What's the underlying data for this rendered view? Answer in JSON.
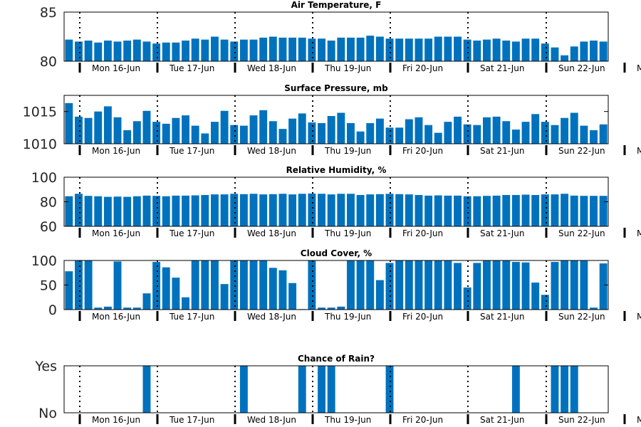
{
  "bar_color": "#0072bd",
  "day_labels": [
    "Mon 16-Jun",
    "Tue 17-Jun",
    "Wed 18-Jun",
    "Thu 19-Jun",
    "Fri 20-Jun",
    "Sat 21-Jun",
    "Sun 22-Jun",
    "M"
  ],
  "chart_data": [
    {
      "type": "bar",
      "title": "Air Temperature, F",
      "ylim": [
        80,
        85
      ],
      "yticks": [
        80,
        85
      ],
      "ytick_labels": [
        "80",
        "85"
      ],
      "grid": false,
      "values": [
        82.2,
        82.0,
        82.1,
        81.9,
        82.1,
        82.0,
        82.1,
        82.2,
        82.0,
        81.8,
        81.9,
        81.9,
        82.1,
        82.3,
        82.2,
        82.5,
        82.2,
        82.0,
        82.2,
        82.2,
        82.4,
        82.5,
        82.4,
        82.4,
        82.4,
        82.3,
        82.3,
        82.1,
        82.4,
        82.4,
        82.4,
        82.6,
        82.5,
        82.3,
        82.3,
        82.3,
        82.3,
        82.3,
        82.5,
        82.5,
        82.5,
        82.2,
        82.1,
        82.2,
        82.3,
        82.1,
        82.0,
        82.3,
        82.3,
        81.8,
        81.4,
        80.6,
        81.5,
        82.0,
        82.1,
        82.0
      ]
    },
    {
      "type": "bar",
      "title": "Surface Pressure, mb",
      "ylim": [
        1010,
        1017.5
      ],
      "yticks": [
        1010,
        1015
      ],
      "ytick_labels": [
        "1010",
        "1015"
      ],
      "grid": false,
      "values": [
        1016.3,
        1014.2,
        1014.0,
        1015.0,
        1015.8,
        1014.1,
        1012.1,
        1013.5,
        1015.1,
        1013.4,
        1013.1,
        1014.0,
        1014.4,
        1012.8,
        1011.6,
        1013.4,
        1015.1,
        1012.9,
        1012.8,
        1014.4,
        1015.2,
        1013.5,
        1012.3,
        1013.9,
        1014.7,
        1013.3,
        1013.2,
        1014.3,
        1014.8,
        1013.2,
        1011.9,
        1013.2,
        1013.9,
        1012.5,
        1012.5,
        1013.8,
        1014.1,
        1012.9,
        1011.7,
        1013.4,
        1014.2,
        1013.0,
        1012.9,
        1014.1,
        1014.2,
        1013.5,
        1012.2,
        1013.4,
        1014.6,
        1013.4,
        1012.9,
        1014.0,
        1014.8,
        1012.8,
        1012.1,
        1013.0
      ]
    },
    {
      "type": "bar",
      "title": "Relative Humidity, %",
      "ylim": [
        60,
        100
      ],
      "yticks": [
        60,
        80,
        100
      ],
      "ytick_labels": [
        "60",
        "80",
        "100"
      ],
      "grid": false,
      "values": [
        84.5,
        86.5,
        84.8,
        84.5,
        84.0,
        84.2,
        84.0,
        84.5,
        85.0,
        84.8,
        84.5,
        85.0,
        85.0,
        85.2,
        85.5,
        86.0,
        86.0,
        86.5,
        86.2,
        86.5,
        86.0,
        86.2,
        86.5,
        86.0,
        86.5,
        86.7,
        86.5,
        86.0,
        86.5,
        86.5,
        85.5,
        86.0,
        86.2,
        86.5,
        86.2,
        86.0,
        85.5,
        85.0,
        85.2,
        85.0,
        85.0,
        84.5,
        84.5,
        84.8,
        85.0,
        85.5,
        85.5,
        85.8,
        85.5,
        86.0,
        86.0,
        86.5,
        85.0,
        84.8,
        84.8,
        84.8
      ]
    },
    {
      "type": "bar",
      "title": "Cloud Cover, %",
      "ylim": [
        0,
        100
      ],
      "yticks": [
        0,
        50,
        100
      ],
      "ytick_labels": [
        "0",
        "50",
        "100"
      ],
      "grid": false,
      "values": [
        78,
        100,
        100,
        4,
        6,
        98,
        4,
        4,
        33,
        97,
        86,
        65,
        25,
        100,
        100,
        100,
        52,
        100,
        100,
        100,
        100,
        85,
        80,
        54,
        1,
        100,
        4,
        4,
        6,
        100,
        100,
        100,
        60,
        95,
        100,
        100,
        100,
        100,
        100,
        100,
        95,
        45,
        95,
        100,
        100,
        100,
        97,
        96,
        55,
        30,
        97,
        100,
        100,
        100,
        4,
        94
      ]
    },
    {
      "type": "bar",
      "title": "Chance of Rain?",
      "ylim": [
        0,
        1
      ],
      "yticks": [
        0,
        1
      ],
      "ytick_labels": [
        "No",
        "Yes"
      ],
      "grid": false,
      "values": [
        0,
        0,
        0,
        0,
        0,
        0,
        0,
        0,
        1,
        0,
        0,
        0,
        0,
        0,
        0,
        0,
        0,
        0,
        1,
        0,
        0,
        0,
        0,
        0,
        1,
        0,
        1,
        1,
        0,
        0,
        0,
        0,
        0,
        1,
        0,
        0,
        0,
        0,
        0,
        0,
        0,
        0,
        0,
        0,
        0,
        0,
        1,
        0,
        0,
        0,
        1,
        1,
        1,
        0,
        0,
        0
      ]
    }
  ]
}
